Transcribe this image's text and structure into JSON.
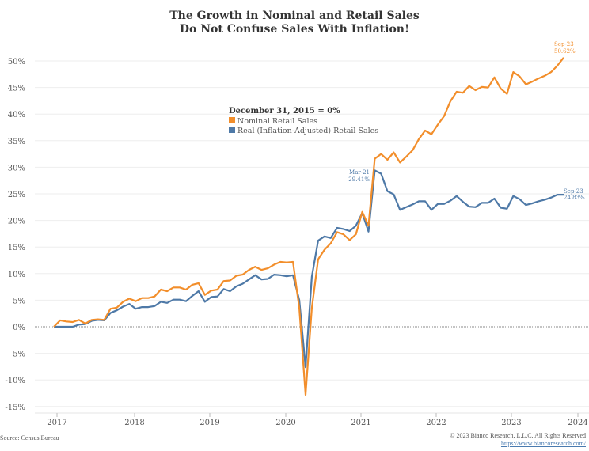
{
  "chart_data": {
    "type": "line",
    "title": "The Growth in Nominal and Retail Sales",
    "subtitle": "Do Not Confuse Sales With Inflation!",
    "xlabel": "",
    "ylabel": "",
    "x_start": "Jan 2017",
    "x_frequency": "monthly",
    "x_ticks": [
      "2017",
      "2018",
      "2019",
      "2020",
      "2021",
      "2022",
      "2023",
      "2024"
    ],
    "y_ticks": [
      "50%",
      "45%",
      "40%",
      "35%",
      "30%",
      "25%",
      "20%",
      "15%",
      "10%",
      "5%",
      "0%",
      "-5%",
      "-10%",
      "-15%"
    ],
    "ylim": [
      -16,
      52
    ],
    "grid": true,
    "legend": {
      "title": "December 31, 2015 = 0%",
      "placement": "center-left",
      "entries": [
        "Nominal Retail Sales",
        "Real (Inflation-Adjusted) Retail Sales"
      ]
    },
    "colors": {
      "nominal": "#f28e2b",
      "real": "#4e79a7"
    },
    "series": [
      {
        "name": "Nominal Retail Sales",
        "values": [
          0,
          1.2,
          1.0,
          0.9,
          1.3,
          0.6,
          1.3,
          1.4,
          1.3,
          3.4,
          3.6,
          4.7,
          5.3,
          4.8,
          5.4,
          5.4,
          5.7,
          7.0,
          6.7,
          7.4,
          7.4,
          7.0,
          7.9,
          8.2,
          6.0,
          6.8,
          7.0,
          8.6,
          8.7,
          9.6,
          9.8,
          10.7,
          11.3,
          10.7,
          11.0,
          11.7,
          12.2,
          12.1,
          12.2,
          3.5,
          -12.8,
          3.5,
          12.7,
          14.5,
          15.7,
          17.8,
          17.4,
          16.3,
          17.4,
          21.6,
          19.0,
          31.6,
          32.5,
          31.4,
          32.8,
          30.9,
          32.0,
          33.2,
          35.3,
          36.9,
          36.2,
          38.0,
          39.6,
          42.4,
          44.2,
          44.0,
          45.3,
          44.5,
          45.1,
          45.0,
          46.9,
          44.8,
          43.8,
          47.9,
          47.1,
          45.6,
          46.1,
          46.7,
          47.2,
          47.9,
          49.1,
          50.62
        ]
      },
      {
        "name": "Real (Inflation-Adjusted) Retail Sales",
        "values": [
          0,
          0.0,
          0.0,
          0.0,
          0.4,
          0.5,
          1.1,
          1.3,
          1.2,
          2.6,
          3.1,
          3.8,
          4.3,
          3.4,
          3.7,
          3.7,
          3.9,
          4.7,
          4.5,
          5.1,
          5.1,
          4.8,
          5.8,
          6.7,
          4.7,
          5.6,
          5.7,
          7.1,
          6.7,
          7.6,
          8.1,
          8.9,
          9.7,
          8.9,
          9.0,
          9.8,
          9.7,
          9.5,
          9.7,
          5.0,
          -7.6,
          9.4,
          16.2,
          17.0,
          16.7,
          18.6,
          18.4,
          18.0,
          19.0,
          21.4,
          17.9,
          29.41,
          28.8,
          25.5,
          24.9,
          22.0,
          22.5,
          23.0,
          23.6,
          23.6,
          22.0,
          23.1,
          23.1,
          23.7,
          24.6,
          23.5,
          22.6,
          22.5,
          23.3,
          23.3,
          24.1,
          22.4,
          22.2,
          24.6,
          24.0,
          22.9,
          23.2,
          23.6,
          23.9,
          24.3,
          24.83,
          24.83
        ]
      }
    ],
    "annotations": [
      {
        "series": "nominal",
        "label": "Sep-23",
        "value_label": "50.62%"
      },
      {
        "series": "real",
        "label": "Mar-21",
        "value_label": "29.41%"
      },
      {
        "series": "real",
        "label": "Sep-23",
        "value_label": "24.83%"
      }
    ]
  },
  "footer": {
    "source": "Source: Census Bureau",
    "copyright": "© 2023 Bianco Research, L.L.C. All Rights Reserved",
    "url": "https://www.biancoresearch.com/"
  }
}
